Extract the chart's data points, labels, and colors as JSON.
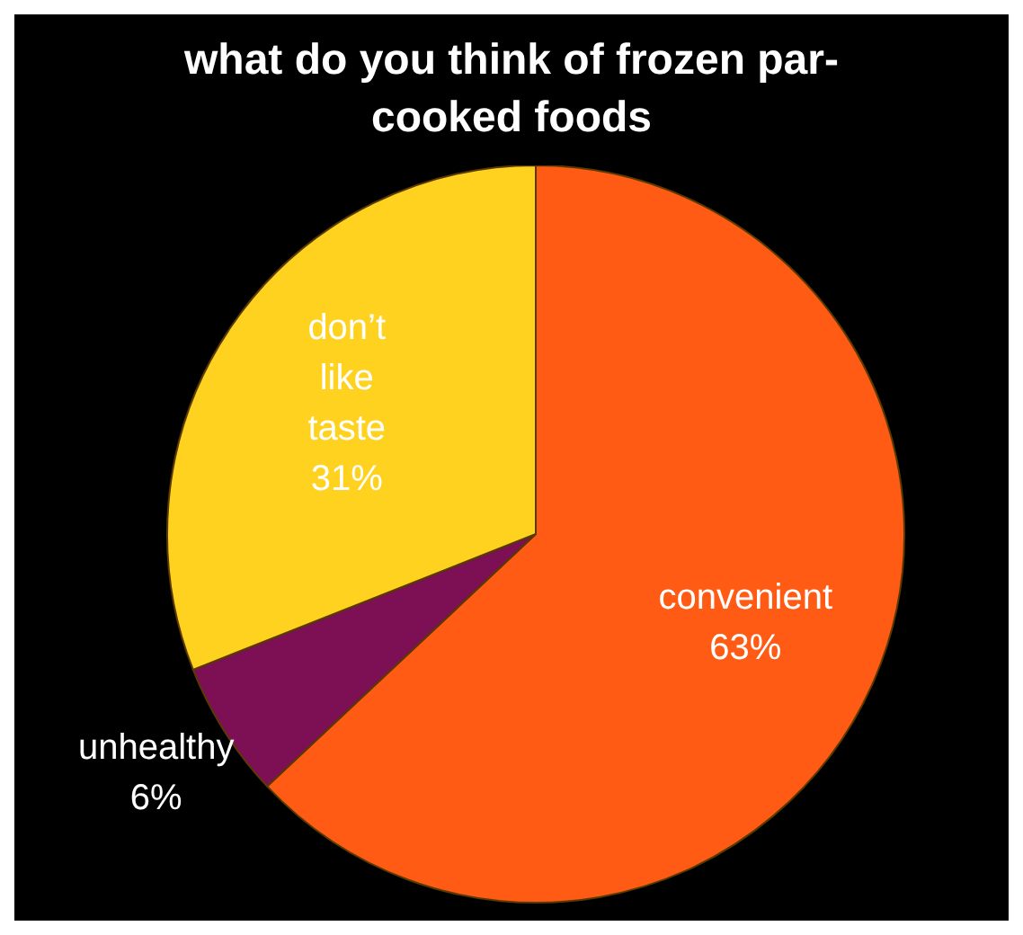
{
  "chart_data": {
    "type": "pie",
    "title": "what do you think of frozen par-cooked foods",
    "categories": [
      "convenient",
      "unhealthy",
      "don’t like taste"
    ],
    "values": [
      63,
      6,
      31
    ],
    "value_labels": [
      "63%",
      "6%",
      "31%"
    ],
    "colors": [
      "#ff5b14",
      "#7d0f55",
      "#ffd21f"
    ]
  }
}
